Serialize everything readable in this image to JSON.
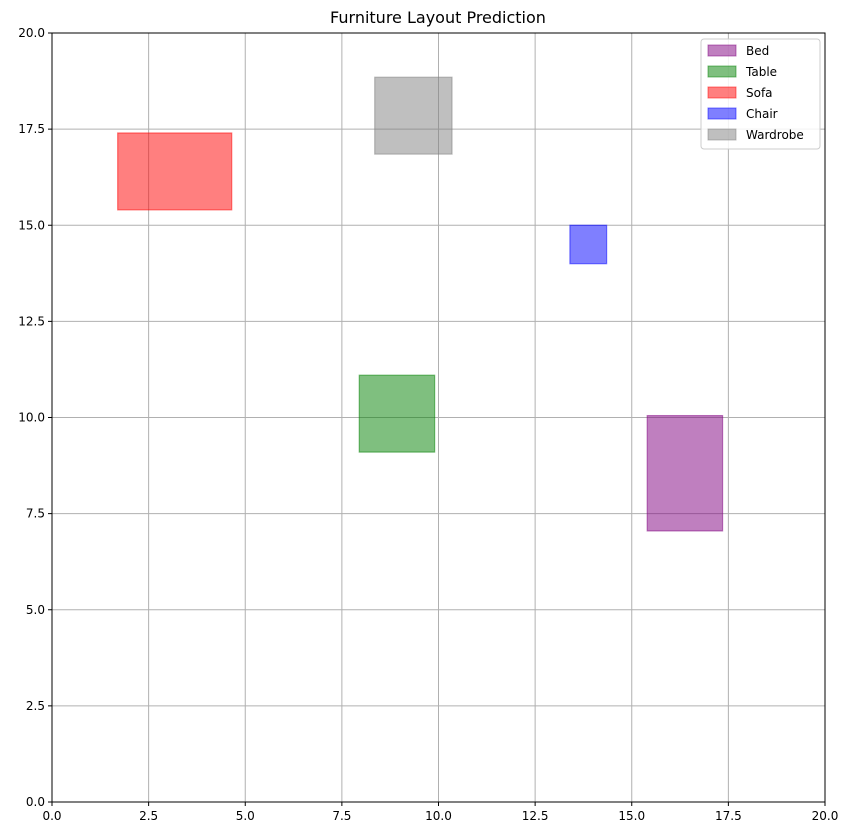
{
  "chart_data": {
    "type": "rectangle-layout",
    "title": "Furniture Layout Prediction",
    "xlabel": "",
    "ylabel": "",
    "xlim": [
      0,
      20
    ],
    "ylim": [
      0,
      20
    ],
    "xticks": [
      "0.0",
      "2.5",
      "5.0",
      "7.5",
      "10.0",
      "12.5",
      "15.0",
      "17.5",
      "20.0"
    ],
    "yticks": [
      "0.0",
      "2.5",
      "5.0",
      "7.5",
      "10.0",
      "12.5",
      "15.0",
      "17.5",
      "20.0"
    ],
    "grid": true,
    "legend_position": "top-right",
    "series": [
      {
        "name": "Bed",
        "color": "#800080",
        "x0": 15.4,
        "y0": 7.05,
        "x1": 17.35,
        "y1": 10.05
      },
      {
        "name": "Table",
        "color": "#008000",
        "x0": 7.95,
        "y0": 9.1,
        "x1": 9.9,
        "y1": 11.1
      },
      {
        "name": "Sofa",
        "color": "#ff0000",
        "x0": 1.7,
        "y0": 15.4,
        "x1": 4.65,
        "y1": 17.4
      },
      {
        "name": "Chair",
        "color": "#0000ff",
        "x0": 13.4,
        "y0": 14.0,
        "x1": 14.35,
        "y1": 15.0
      },
      {
        "name": "Wardrobe",
        "color": "#808080",
        "x0": 8.35,
        "y0": 16.85,
        "x1": 10.35,
        "y1": 18.85
      }
    ]
  }
}
